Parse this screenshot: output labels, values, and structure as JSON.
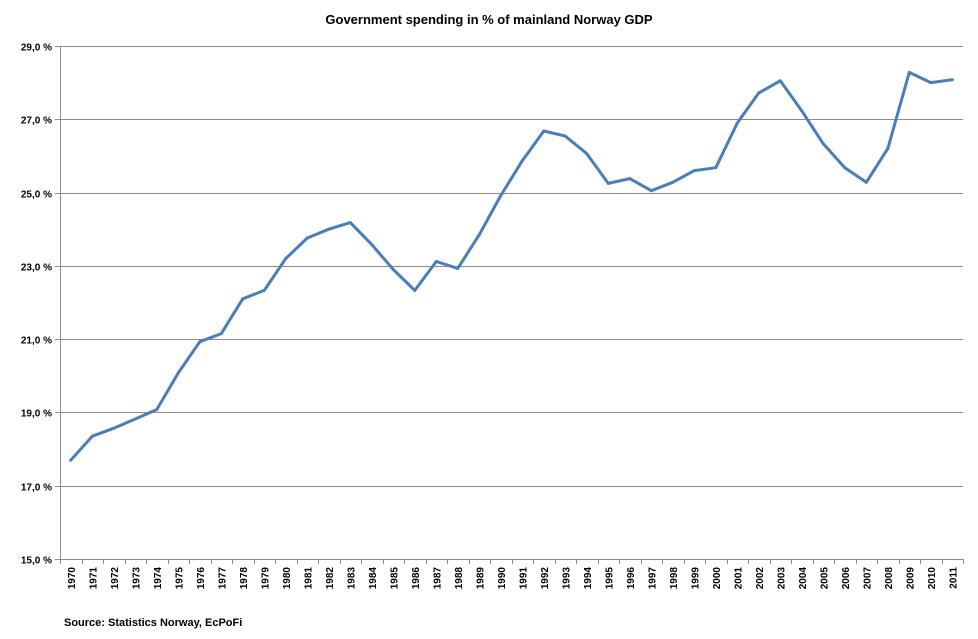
{
  "chart_data": {
    "type": "line",
    "title": "Government spending in % of mainland Norway GDP",
    "xlabel": "",
    "ylabel": "",
    "ylim": [
      15,
      29
    ],
    "y_ticks": [
      15,
      17,
      19,
      21,
      23,
      25,
      27,
      29
    ],
    "y_tick_labels": [
      "15,0 %",
      "17,0 %",
      "19,0 %",
      "21,0 %",
      "23,0 %",
      "25,0 %",
      "27,0 %",
      "29,0 %"
    ],
    "grid": "horizontal",
    "legend": "none",
    "categories": [
      "1970",
      "1971",
      "1972",
      "1973",
      "1974",
      "1975",
      "1976",
      "1977",
      "1978",
      "1979",
      "1980",
      "1981",
      "1982",
      "1983",
      "1984",
      "1985",
      "1986",
      "1987",
      "1988",
      "1989",
      "1990",
      "1991",
      "1992",
      "1993",
      "1994",
      "1995",
      "1996",
      "1997",
      "1998",
      "1999",
      "2000",
      "2001",
      "2002",
      "2003",
      "2004",
      "2005",
      "2006",
      "2007",
      "2008",
      "2009",
      "2010",
      "2011"
    ],
    "series": [
      {
        "name": "Government spending",
        "color": "#4a7ebb",
        "values": [
          17.7,
          18.35,
          18.57,
          18.82,
          19.08,
          20.08,
          20.93,
          21.15,
          22.1,
          22.33,
          23.2,
          23.76,
          24.0,
          24.18,
          23.58,
          22.9,
          22.33,
          23.12,
          22.93,
          23.85,
          24.92,
          25.87,
          26.68,
          26.54,
          26.06,
          25.25,
          25.38,
          25.05,
          25.28,
          25.6,
          25.68,
          26.9,
          27.72,
          28.05,
          27.23,
          26.33,
          25.68,
          25.28,
          26.2,
          28.28,
          28.0,
          28.08
        ]
      }
    ],
    "source": "Source: Statistics  Norway, EcPoFi"
  }
}
